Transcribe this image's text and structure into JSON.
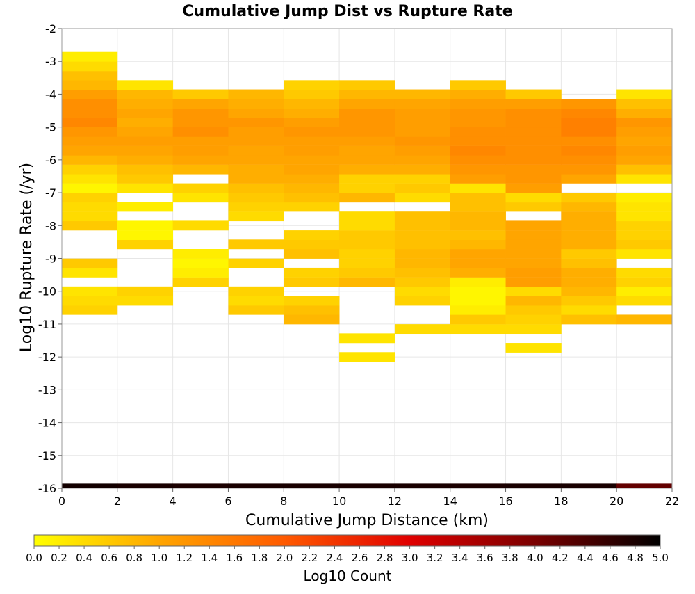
{
  "chart_data": {
    "type": "heatmap",
    "title": "Cumulative Jump Dist vs Rupture Rate",
    "xlabel": "Cumulative Jump Distance (km)",
    "ylabel": "Log10 Rupture Rate (/yr)",
    "xlim": [
      0,
      22
    ],
    "ylim": [
      -16,
      -2
    ],
    "xticks": [
      "0",
      "2",
      "4",
      "6",
      "8",
      "10",
      "12",
      "14",
      "16",
      "18",
      "20",
      "22"
    ],
    "yticks": [
      "-2",
      "-3",
      "-4",
      "-5",
      "-6",
      "-7",
      "-8",
      "-9",
      "-10",
      "-11",
      "-12",
      "-13",
      "-14",
      "-15",
      "-16"
    ],
    "grid": true,
    "x_bin_width": 2,
    "y_bin_height": 0.2857,
    "x_bins": [
      0,
      2,
      4,
      6,
      8,
      10,
      12,
      14,
      16,
      18,
      20
    ],
    "cells_note": "each row: x bin start (km), then [log10 rate bin bottom, log10 count] pairs",
    "cells": [
      {
        "x": 0,
        "bins": [
          [
            -10.71,
            0.5
          ],
          [
            -10.43,
            0.4
          ],
          [
            -10.14,
            0.3
          ],
          [
            -9.57,
            0.3
          ],
          [
            -9.29,
            0.6
          ],
          [
            -8.14,
            0.6
          ],
          [
            -7.86,
            0.4
          ],
          [
            -7.57,
            0.4
          ],
          [
            -7.29,
            0.5
          ],
          [
            -7.0,
            0.1
          ],
          [
            -6.71,
            0.3
          ],
          [
            -6.43,
            0.5
          ],
          [
            -6.14,
            0.8
          ],
          [
            -5.86,
            1.0
          ],
          [
            -5.57,
            1.1
          ],
          [
            -5.29,
            1.2
          ],
          [
            -5.0,
            1.4
          ],
          [
            -4.71,
            1.3
          ],
          [
            -4.43,
            1.3
          ],
          [
            -4.14,
            1.1
          ],
          [
            -3.86,
            0.8
          ],
          [
            -3.57,
            0.7
          ],
          [
            -3.29,
            0.4
          ],
          [
            -3.0,
            0.2
          ]
        ]
      },
      {
        "x": 2,
        "bins": [
          [
            -10.43,
            0.4
          ],
          [
            -10.14,
            0.5
          ],
          [
            -8.71,
            0.5
          ],
          [
            -8.43,
            0.1
          ],
          [
            -8.14,
            0.1
          ],
          [
            -7.57,
            0.2
          ],
          [
            -7.0,
            0.3
          ],
          [
            -6.71,
            0.6
          ],
          [
            -6.43,
            0.7
          ],
          [
            -6.14,
            0.9
          ],
          [
            -5.86,
            1.0
          ],
          [
            -5.57,
            1.1
          ],
          [
            -5.29,
            1.0
          ],
          [
            -5.0,
            0.9
          ],
          [
            -4.71,
            1.0
          ],
          [
            -4.43,
            0.9
          ],
          [
            -4.14,
            0.8
          ],
          [
            -3.86,
            0.3
          ]
        ]
      },
      {
        "x": 4,
        "bins": [
          [
            -9.86,
            0.5
          ],
          [
            -9.57,
            0.2
          ],
          [
            -9.29,
            0.1
          ],
          [
            -9.0,
            0.2
          ],
          [
            -8.14,
            0.4
          ],
          [
            -7.29,
            0.3
          ],
          [
            -7.0,
            0.5
          ],
          [
            -6.43,
            0.8
          ],
          [
            -6.14,
            1.0
          ],
          [
            -5.86,
            1.1
          ],
          [
            -5.57,
            1.1
          ],
          [
            -5.29,
            1.3
          ],
          [
            -5.0,
            1.2
          ],
          [
            -4.71,
            1.2
          ],
          [
            -4.43,
            1.0
          ],
          [
            -4.14,
            0.6
          ]
        ]
      },
      {
        "x": 6,
        "bins": [
          [
            -10.71,
            0.6
          ],
          [
            -10.43,
            0.4
          ],
          [
            -10.14,
            0.5
          ],
          [
            -9.29,
            0.5
          ],
          [
            -8.71,
            0.6
          ],
          [
            -7.86,
            0.4
          ],
          [
            -7.57,
            0.5
          ],
          [
            -7.29,
            0.6
          ],
          [
            -7.0,
            0.7
          ],
          [
            -6.71,
            0.9
          ],
          [
            -6.43,
            0.9
          ],
          [
            -6.14,
            1.0
          ],
          [
            -5.86,
            1.0
          ],
          [
            -5.57,
            1.1
          ],
          [
            -5.29,
            1.1
          ],
          [
            -5.0,
            1.2
          ],
          [
            -4.71,
            1.0
          ],
          [
            -4.43,
            0.9
          ],
          [
            -4.14,
            0.8
          ]
        ]
      },
      {
        "x": 8,
        "bins": [
          [
            -11.0,
            0.8
          ],
          [
            -10.71,
            0.7
          ],
          [
            -10.43,
            0.5
          ],
          [
            -9.86,
            0.6
          ],
          [
            -9.57,
            0.5
          ],
          [
            -9.0,
            0.7
          ],
          [
            -8.71,
            0.6
          ],
          [
            -8.43,
            0.5
          ],
          [
            -7.57,
            0.5
          ],
          [
            -7.29,
            0.7
          ],
          [
            -7.0,
            0.8
          ],
          [
            -6.71,
            0.9
          ],
          [
            -6.43,
            1.0
          ],
          [
            -6.14,
            1.0
          ],
          [
            -5.86,
            1.1
          ],
          [
            -5.57,
            1.1
          ],
          [
            -5.29,
            1.2
          ],
          [
            -5.0,
            1.1
          ],
          [
            -4.71,
            0.9
          ],
          [
            -4.43,
            0.8
          ],
          [
            -4.14,
            0.6
          ],
          [
            -3.86,
            0.5
          ]
        ]
      },
      {
        "x": 10,
        "bins": [
          [
            -12.14,
            0.3
          ],
          [
            -11.57,
            0.3
          ],
          [
            -9.86,
            0.8
          ],
          [
            -9.57,
            0.6
          ],
          [
            -9.29,
            0.5
          ],
          [
            -9.0,
            0.5
          ],
          [
            -8.71,
            0.6
          ],
          [
            -8.43,
            0.6
          ],
          [
            -8.14,
            0.4
          ],
          [
            -7.86,
            0.4
          ],
          [
            -7.29,
            0.8
          ],
          [
            -7.0,
            0.5
          ],
          [
            -6.71,
            0.5
          ],
          [
            -6.43,
            0.9
          ],
          [
            -6.14,
            1.0
          ],
          [
            -5.86,
            1.0
          ],
          [
            -5.57,
            1.1
          ],
          [
            -5.29,
            1.2
          ],
          [
            -5.0,
            1.2
          ],
          [
            -4.71,
            1.2
          ],
          [
            -4.43,
            1.0
          ],
          [
            -4.14,
            0.8
          ],
          [
            -3.86,
            0.6
          ]
        ]
      },
      {
        "x": 12,
        "bins": [
          [
            -11.29,
            0.4
          ],
          [
            -10.43,
            0.5
          ],
          [
            -10.14,
            0.4
          ],
          [
            -9.86,
            0.6
          ],
          [
            -9.57,
            0.7
          ],
          [
            -9.29,
            0.8
          ],
          [
            -9.0,
            0.8
          ],
          [
            -8.71,
            0.7
          ],
          [
            -8.43,
            0.7
          ],
          [
            -8.14,
            0.7
          ],
          [
            -7.86,
            0.7
          ],
          [
            -7.29,
            0.4
          ],
          [
            -7.0,
            0.6
          ],
          [
            -6.71,
            0.5
          ],
          [
            -6.43,
            0.9
          ],
          [
            -6.14,
            1.0
          ],
          [
            -5.86,
            1.1
          ],
          [
            -5.57,
            1.2
          ],
          [
            -5.29,
            1.1
          ],
          [
            -5.0,
            1.1
          ],
          [
            -4.71,
            1.1
          ],
          [
            -4.43,
            1.0
          ],
          [
            -4.14,
            0.8
          ]
        ]
      },
      {
        "x": 14,
        "bins": [
          [
            -11.29,
            0.4
          ],
          [
            -11.0,
            0.6
          ],
          [
            -10.71,
            0.2
          ],
          [
            -10.43,
            0.1
          ],
          [
            -10.14,
            0.1
          ],
          [
            -9.86,
            0.2
          ],
          [
            -9.57,
            0.9
          ],
          [
            -9.29,
            1.0
          ],
          [
            -9.0,
            1.0
          ],
          [
            -8.71,
            0.8
          ],
          [
            -8.43,
            0.7
          ],
          [
            -8.14,
            0.8
          ],
          [
            -7.86,
            0.8
          ],
          [
            -7.57,
            0.7
          ],
          [
            -7.29,
            0.7
          ],
          [
            -7.0,
            0.3
          ],
          [
            -6.71,
            1.1
          ],
          [
            -6.43,
            1.2
          ],
          [
            -6.14,
            1.3
          ],
          [
            -5.86,
            1.4
          ],
          [
            -5.57,
            1.3
          ],
          [
            -5.29,
            1.3
          ],
          [
            -5.0,
            1.2
          ],
          [
            -4.71,
            1.2
          ],
          [
            -4.43,
            1.1
          ],
          [
            -4.14,
            0.9
          ],
          [
            -3.86,
            0.6
          ]
        ]
      },
      {
        "x": 16,
        "bins": [
          [
            -11.86,
            0.3
          ],
          [
            -11.29,
            0.4
          ],
          [
            -11.0,
            0.5
          ],
          [
            -10.71,
            0.6
          ],
          [
            -10.43,
            0.8
          ],
          [
            -10.14,
            0.4
          ],
          [
            -9.86,
            1.1
          ],
          [
            -9.57,
            1.1
          ],
          [
            -9.29,
            1.0
          ],
          [
            -9.0,
            1.0
          ],
          [
            -8.71,
            1.0
          ],
          [
            -8.43,
            1.0
          ],
          [
            -8.14,
            1.0
          ],
          [
            -7.57,
            0.6
          ],
          [
            -7.29,
            0.4
          ],
          [
            -7.0,
            1.1
          ],
          [
            -6.71,
            1.2
          ],
          [
            -6.43,
            1.2
          ],
          [
            -6.14,
            1.3
          ],
          [
            -5.86,
            1.3
          ],
          [
            -5.57,
            1.3
          ],
          [
            -5.29,
            1.3
          ],
          [
            -5.0,
            1.3
          ],
          [
            -4.71,
            1.3
          ],
          [
            -4.43,
            1.1
          ],
          [
            -4.14,
            0.6
          ]
        ]
      },
      {
        "x": 18,
        "bins": [
          [
            -11.0,
            0.7
          ],
          [
            -10.71,
            0.4
          ],
          [
            -10.43,
            0.6
          ],
          [
            -10.14,
            0.8
          ],
          [
            -9.86,
            0.9
          ],
          [
            -9.57,
            0.9
          ],
          [
            -9.29,
            0.7
          ],
          [
            -9.0,
            0.6
          ],
          [
            -8.71,
            0.9
          ],
          [
            -8.43,
            0.9
          ],
          [
            -8.14,
            0.9
          ],
          [
            -7.86,
            0.9
          ],
          [
            -7.57,
            0.8
          ],
          [
            -7.29,
            0.6
          ],
          [
            -6.71,
            1.0
          ],
          [
            -6.43,
            1.2
          ],
          [
            -6.14,
            1.3
          ],
          [
            -5.86,
            1.4
          ],
          [
            -5.57,
            1.3
          ],
          [
            -5.29,
            1.5
          ],
          [
            -5.0,
            1.5
          ],
          [
            -4.71,
            1.4
          ],
          [
            -4.43,
            1.2
          ]
        ]
      },
      {
        "x": 20,
        "bins": [
          [
            -11.0,
            0.8
          ],
          [
            -10.43,
            0.4
          ],
          [
            -10.14,
            0.2
          ],
          [
            -9.86,
            0.5
          ],
          [
            -9.57,
            0.4
          ],
          [
            -9.0,
            0.3
          ],
          [
            -8.71,
            0.6
          ],
          [
            -8.43,
            0.5
          ],
          [
            -8.14,
            0.5
          ],
          [
            -7.86,
            0.3
          ],
          [
            -7.57,
            0.3
          ],
          [
            -7.29,
            0.2
          ],
          [
            -6.71,
            0.3
          ],
          [
            -6.43,
            0.7
          ],
          [
            -6.14,
            1.0
          ],
          [
            -5.86,
            1.1
          ],
          [
            -5.57,
            1.0
          ],
          [
            -5.29,
            1.1
          ],
          [
            -5.0,
            1.2
          ],
          [
            -4.71,
            0.9
          ],
          [
            -4.43,
            0.7
          ],
          [
            -4.14,
            0.3
          ]
        ]
      }
    ],
    "bottom_row": {
      "y_bottom": -16.0,
      "x_bins": [
        0,
        2,
        4,
        6,
        8,
        10,
        12,
        14,
        16,
        18,
        20
      ],
      "log10_count": [
        4.85,
        4.8,
        4.78,
        4.8,
        4.8,
        4.8,
        4.8,
        4.78,
        4.8,
        4.8,
        4.2
      ]
    },
    "colorbar": {
      "label": "Log10 Count",
      "min": 0.0,
      "max": 5.0,
      "ticks": [
        "0.0",
        "0.2",
        "0.4",
        "0.6",
        "0.8",
        "1.0",
        "1.2",
        "1.4",
        "1.6",
        "1.8",
        "2.0",
        "2.2",
        "2.4",
        "2.6",
        "2.8",
        "3.0",
        "3.2",
        "3.4",
        "3.6",
        "3.8",
        "4.0",
        "4.2",
        "4.4",
        "4.6",
        "4.8",
        "5.0"
      ],
      "colors": [
        "#ffff00",
        "#ffa500",
        "#ff5a00",
        "#e00000",
        "#7a0000",
        "#000000"
      ]
    }
  }
}
